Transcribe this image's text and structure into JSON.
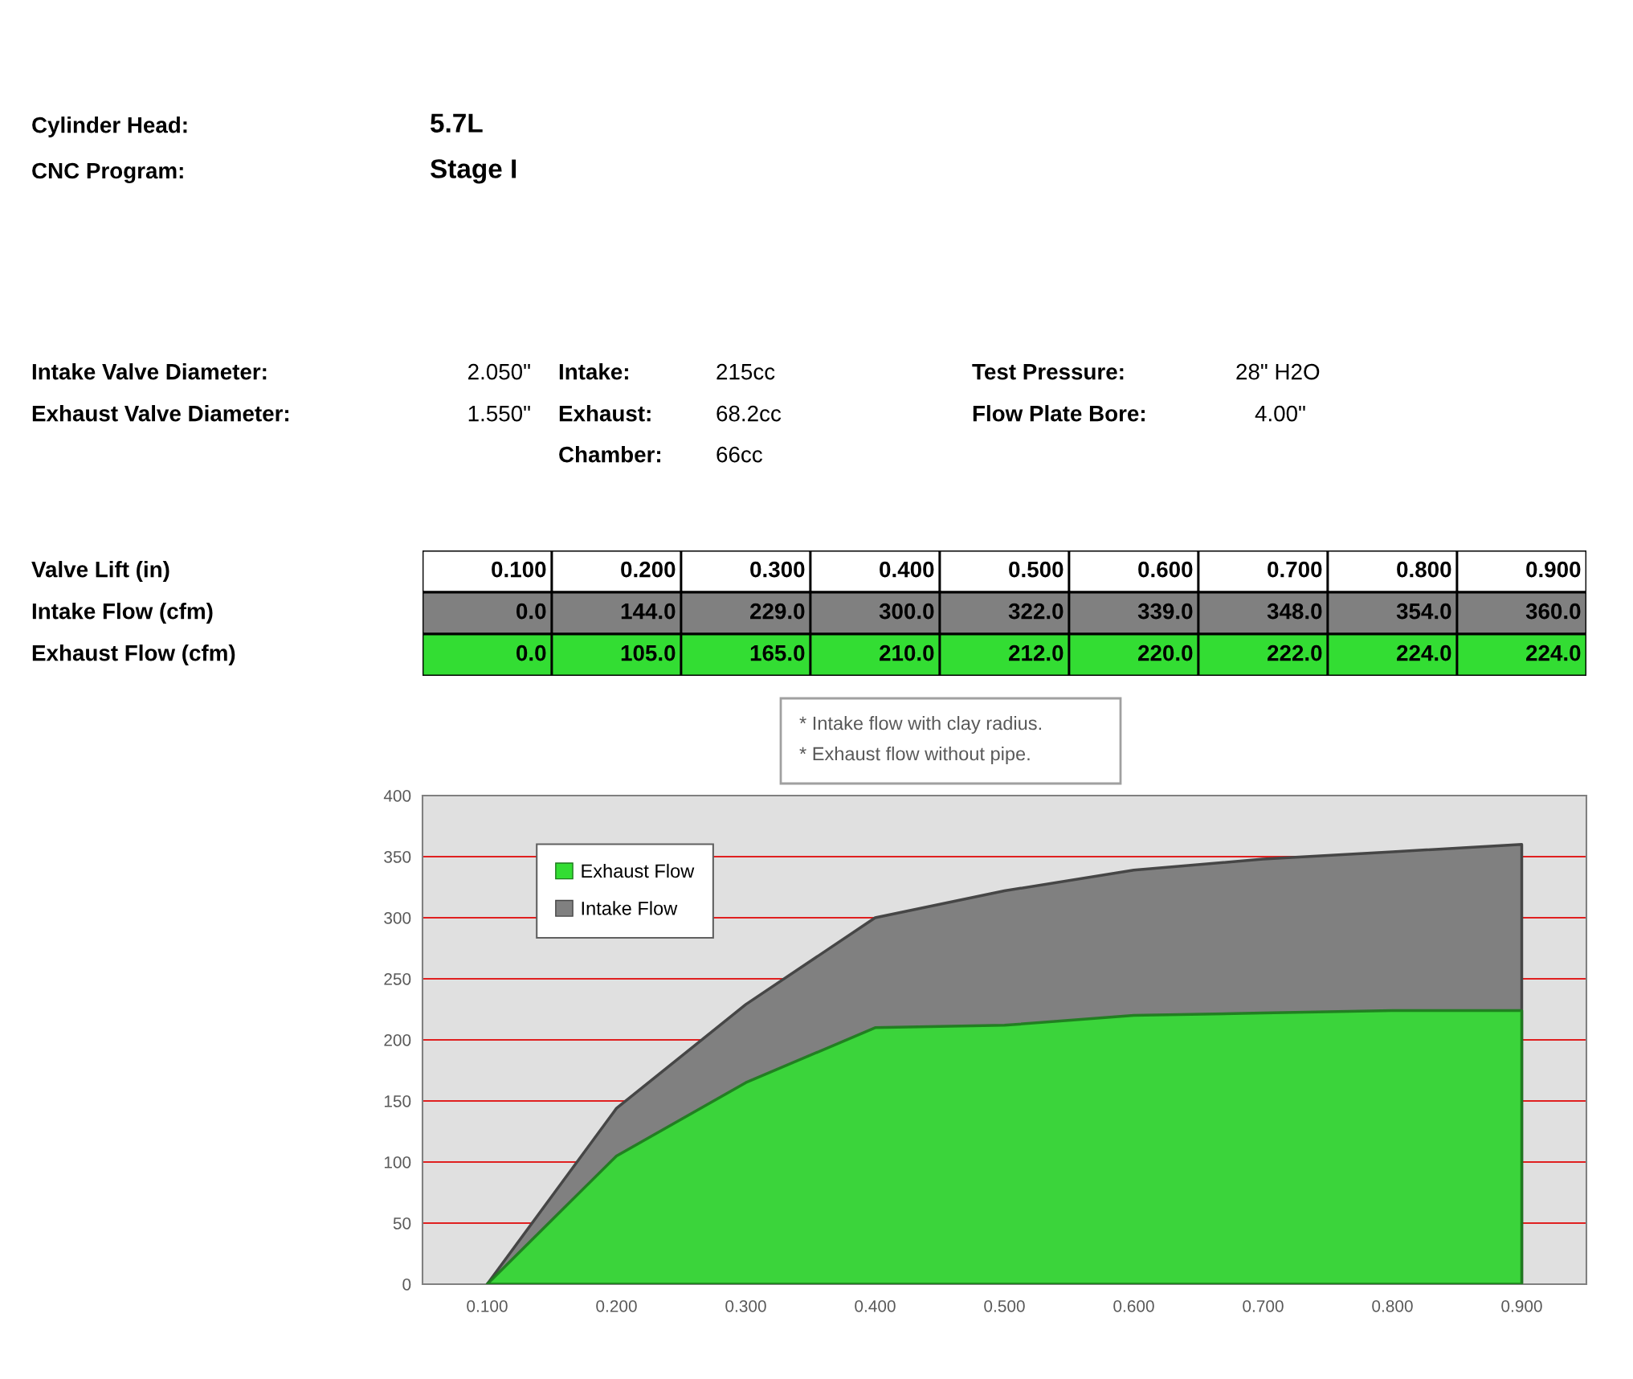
{
  "chart_data": {
    "type": "area",
    "categories": [
      "0.100",
      "0.200",
      "0.300",
      "0.400",
      "0.500",
      "0.600",
      "0.700",
      "0.800",
      "0.900"
    ],
    "series": [
      {
        "name": "Intake Flow",
        "color": "#808080",
        "values": [
          0,
          144,
          229,
          300,
          322,
          339,
          348,
          354,
          360
        ],
        "value_labels": [
          "0.0",
          "144.0",
          "229.0",
          "300.0",
          "322.0",
          "339.0",
          "348.0",
          "354.0",
          "360.0"
        ]
      },
      {
        "name": "Exhaust Flow",
        "color": "#33dd33",
        "values": [
          0,
          105,
          165,
          210,
          212,
          220,
          222,
          224,
          224
        ],
        "value_labels": [
          "0.0",
          "105.0",
          "165.0",
          "210.0",
          "212.0",
          "220.0",
          "222.0",
          "224.0",
          "224.0"
        ]
      }
    ],
    "ylim": [
      0,
      400
    ],
    "yticks": [
      0,
      50,
      100,
      150,
      200,
      250,
      300,
      350,
      400
    ],
    "grid": "y",
    "legend": "top left",
    "annotations": [
      "Cylinder Head:",
      "5.7L",
      "CNC Program:",
      "Stage I",
      "Intake Valve Diameter:",
      "2.050\"",
      "Exhaust Valve Diameter:",
      "1.550\"",
      "Intake:",
      "215cc",
      "Exhaust:",
      "68.2cc",
      "Chamber:",
      "66cc",
      "Test Pressure:",
      "28\" H2O",
      "Flow Plate Bore:",
      "4.00\"",
      "* Intake flow with clay radius.",
      "* Exhaust flow without pipe.",
      "Valve Lift (in)",
      "Intake Flow (cfm)",
      "Exhaust Flow (cfm)"
    ]
  }
}
